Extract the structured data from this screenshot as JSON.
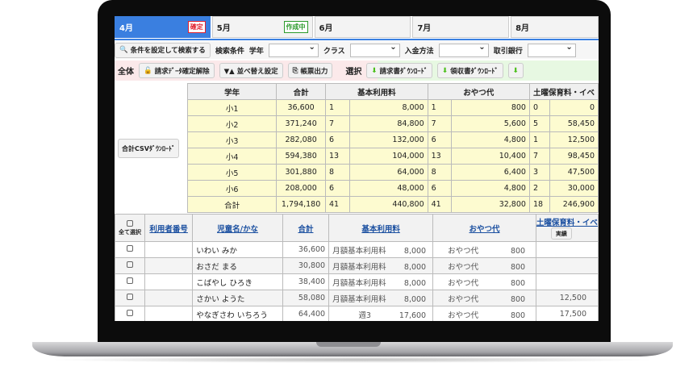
{
  "tabs": [
    {
      "label": "4月",
      "badge": "確定"
    },
    {
      "label": "5月",
      "badge": "作成中"
    },
    {
      "label": "6月"
    },
    {
      "label": "7月"
    },
    {
      "label": "8月"
    }
  ],
  "search": {
    "button": "条件を設定して検索する",
    "label": "検索条件",
    "grade": "学年",
    "class": "クラス",
    "payment": "入金方法",
    "bank": "取引銀行"
  },
  "actions": {
    "all": "全体",
    "unlock": "請求ﾃﾞｰﾀ確定解除",
    "sort": "▼▲ 並べ替え設定",
    "print": "帳票出力",
    "select": "選択",
    "invoice_dl": "請求書ﾀﾞｳﾝﾛｰﾄﾞ",
    "receipt_dl": "領収書ﾀﾞｳﾝﾛｰﾄﾞ"
  },
  "summary": {
    "csv_button": "合計CSVﾀﾞｳﾝﾛｰﾄﾞ",
    "headers": [
      "学年",
      "合計",
      "基本利用料",
      "おやつ代",
      "土曜保育料・イベ"
    ],
    "rows": [
      [
        "小1",
        "36,600",
        "1",
        "8,000",
        "1",
        "800",
        "0",
        "0"
      ],
      [
        "小2",
        "371,240",
        "7",
        "84,800",
        "7",
        "5,600",
        "5",
        "58,450"
      ],
      [
        "小3",
        "282,080",
        "6",
        "132,000",
        "6",
        "4,800",
        "1",
        "12,500"
      ],
      [
        "小4",
        "594,380",
        "13",
        "104,000",
        "13",
        "10,400",
        "7",
        "98,450"
      ],
      [
        "小5",
        "301,880",
        "8",
        "64,000",
        "8",
        "6,400",
        "3",
        "47,500"
      ],
      [
        "小6",
        "208,000",
        "6",
        "48,000",
        "6",
        "4,800",
        "2",
        "30,000"
      ],
      [
        "合計",
        "1,794,180",
        "41",
        "440,800",
        "41",
        "32,800",
        "18",
        "246,900"
      ]
    ]
  },
  "detail": {
    "headers": {
      "select_all": "全て選択",
      "user_no": "利用者番号",
      "name": "児童名/かな",
      "total": "合計",
      "basic": "基本利用料",
      "snack": "おやつ代",
      "saturday": "土曜保育料・イベ",
      "actual_button": "実績"
    },
    "rows": [
      {
        "name": "いわい みか",
        "total": "36,600",
        "basic_label": "月額基本利用料",
        "basic": "8,000",
        "snack_label": "おやつ代",
        "snack": "800",
        "saturday": ""
      },
      {
        "name": "おさだ まる",
        "total": "30,800",
        "basic_label": "月額基本利用料",
        "basic": "8,000",
        "snack_label": "おやつ代",
        "snack": "800",
        "saturday": ""
      },
      {
        "name": "こばやし ひろき",
        "total": "38,400",
        "basic_label": "月額基本利用料",
        "basic": "8,000",
        "snack_label": "おやつ代",
        "snack": "800",
        "saturday": ""
      },
      {
        "name": "さかい ようた",
        "total": "58,080",
        "basic_label": "月額基本利用料",
        "basic": "8,000",
        "snack_label": "おやつ代",
        "snack": "800",
        "saturday": "12,500"
      },
      {
        "name": "やなぎさわ いちろう",
        "total": "64,400",
        "basic_label": "週3",
        "basic": "17,600",
        "snack_label": "おやつ代",
        "snack": "800",
        "saturday": "17,500"
      }
    ]
  }
}
